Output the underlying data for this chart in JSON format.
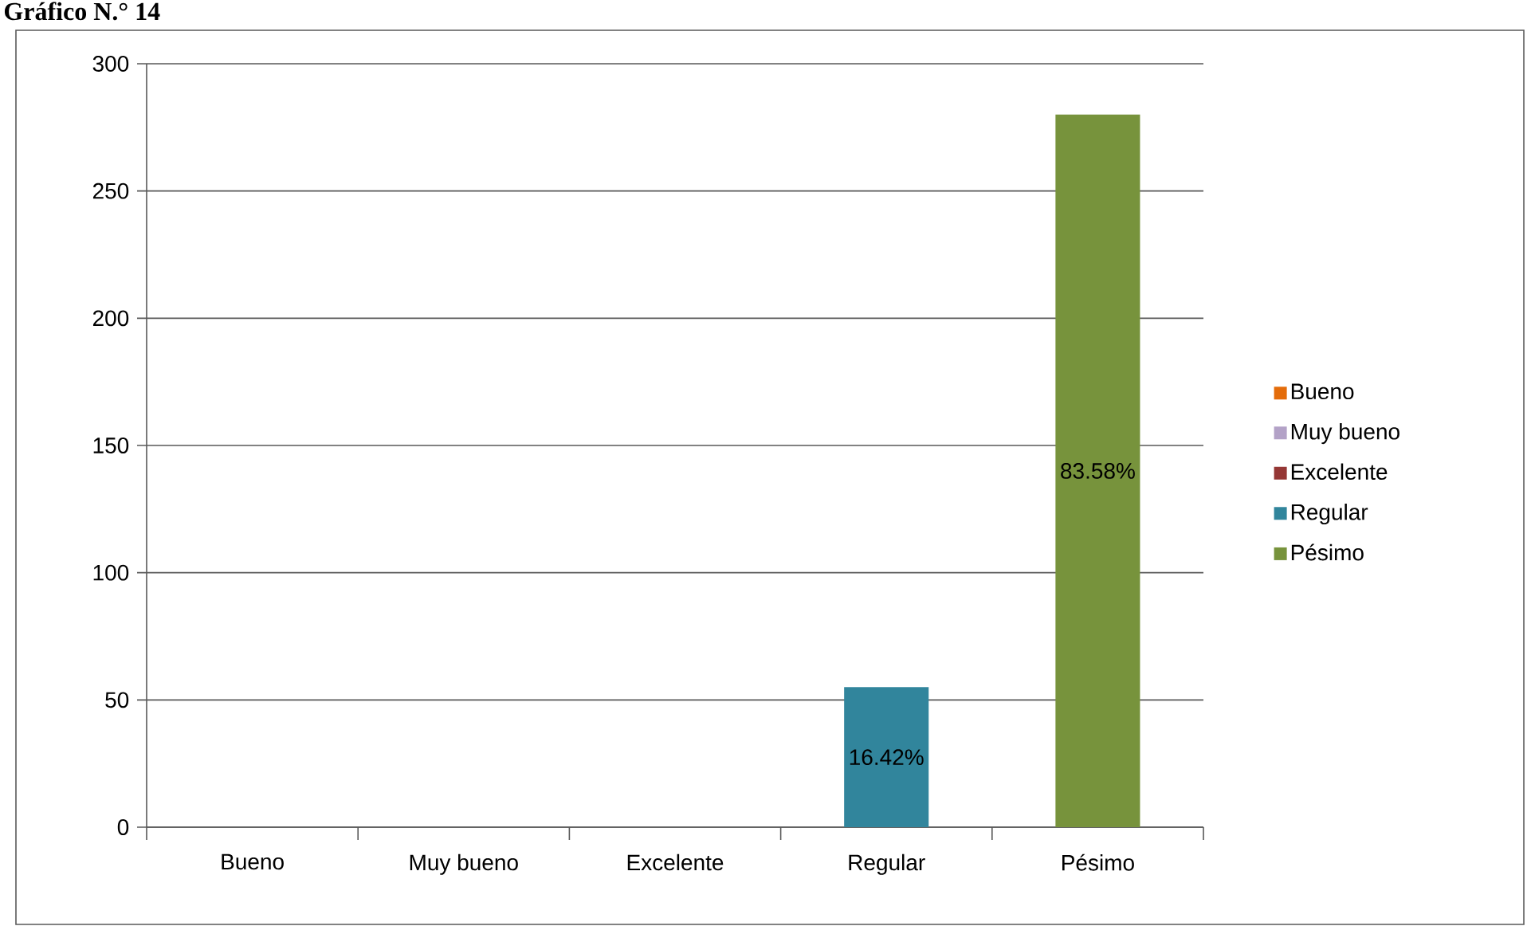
{
  "chart_data": {
    "type": "bar",
    "title": "Gráfico N.° 14",
    "categories": [
      "Bueno",
      "Muy bueno",
      "Excelente",
      "Regular",
      "Pésimo"
    ],
    "series": [
      {
        "name": "Bueno",
        "color": "#e46c0a",
        "values": [
          0,
          null,
          null,
          null,
          null
        ]
      },
      {
        "name": "Muy bueno",
        "color": "#b3a2c7",
        "values": [
          null,
          0,
          null,
          null,
          null
        ]
      },
      {
        "name": "Excelente",
        "color": "#953735",
        "values": [
          null,
          null,
          0,
          null,
          null
        ]
      },
      {
        "name": "Regular",
        "color": "#31859c",
        "values": [
          null,
          null,
          null,
          55,
          null
        ]
      },
      {
        "name": "Pésimo",
        "color": "#77933c",
        "values": [
          null,
          null,
          null,
          null,
          280
        ]
      }
    ],
    "annotations": [
      "16.42%",
      "83.58%"
    ],
    "ylim": [
      0,
      300
    ],
    "yticks": [
      0,
      50,
      100,
      150,
      200,
      250,
      300
    ],
    "grid": "y",
    "legend": "right"
  }
}
